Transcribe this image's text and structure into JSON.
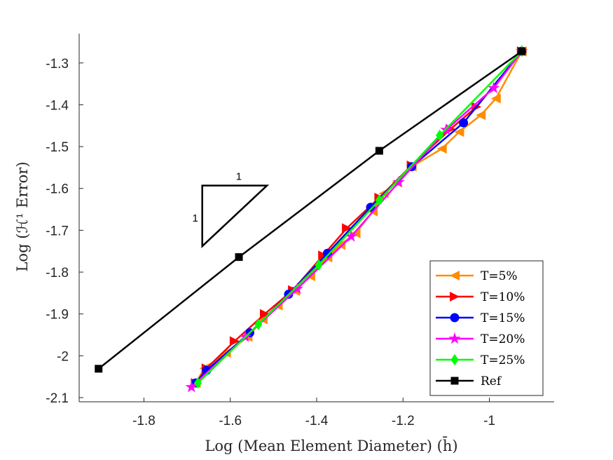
{
  "chart_data": {
    "type": "line",
    "title": "",
    "xlabel": "Log (Mean Element Diameter)  (h̄)",
    "ylabel": "Log (ℋ¹ Error)",
    "xlim": [
      -1.95,
      -0.85
    ],
    "ylim": [
      -2.11,
      -1.23
    ],
    "x_ticks": [
      -1.8,
      -1.6,
      -1.4,
      -1.2,
      -1
    ],
    "x_tick_labels": [
      "-1.8",
      "-1.6",
      "-1.4",
      "-1.2",
      "-1"
    ],
    "y_ticks": [
      -2.1,
      -2.0,
      -1.9,
      -1.8,
      -1.7,
      -1.6,
      -1.5,
      -1.4,
      -1.3
    ],
    "y_tick_labels": [
      "-2.1",
      "-2",
      "-1.9",
      "-1.8",
      "-1.7",
      "-1.6",
      "-1.5",
      "-1.4",
      "-1.3"
    ],
    "legend_position": "bottom-right",
    "series": [
      {
        "name": "T=5%",
        "color": "#FF8C00",
        "marker": "triangle-left",
        "points": [
          [
            -0.925,
            -1.272
          ],
          [
            -0.985,
            -1.385
          ],
          [
            -1.02,
            -1.425
          ],
          [
            -1.07,
            -1.465
          ],
          [
            -1.11,
            -1.505
          ],
          [
            -1.18,
            -1.548
          ],
          [
            -1.215,
            -1.585
          ],
          [
            -1.245,
            -1.612
          ],
          [
            -1.27,
            -1.655
          ],
          [
            -1.31,
            -1.707
          ],
          [
            -1.345,
            -1.735
          ],
          [
            -1.375,
            -1.765
          ],
          [
            -1.415,
            -1.81
          ],
          [
            -1.45,
            -1.845
          ],
          [
            -1.49,
            -1.88
          ],
          [
            -1.525,
            -1.913
          ],
          [
            -1.56,
            -1.955
          ],
          [
            -1.61,
            -1.993
          ],
          [
            -1.66,
            -2.03
          ],
          [
            -1.68,
            -2.065
          ]
        ]
      },
      {
        "name": "T=10%",
        "color": "#FF0000",
        "marker": "triangle-right",
        "points": [
          [
            -0.925,
            -1.272
          ],
          [
            -1.03,
            -1.405
          ],
          [
            -1.09,
            -1.458
          ],
          [
            -1.18,
            -1.545
          ],
          [
            -1.255,
            -1.622
          ],
          [
            -1.33,
            -1.695
          ],
          [
            -1.385,
            -1.76
          ],
          [
            -1.455,
            -1.843
          ],
          [
            -1.52,
            -1.9
          ],
          [
            -1.59,
            -1.965
          ],
          [
            -1.655,
            -2.03
          ],
          [
            -1.68,
            -2.065
          ]
        ]
      },
      {
        "name": "T=15%",
        "color": "#0000FF",
        "marker": "circle",
        "points": [
          [
            -0.925,
            -1.272
          ],
          [
            -1.06,
            -1.443
          ],
          [
            -1.18,
            -1.548
          ],
          [
            -1.275,
            -1.645
          ],
          [
            -1.375,
            -1.755
          ],
          [
            -1.465,
            -1.853
          ],
          [
            -1.555,
            -1.945
          ],
          [
            -1.655,
            -2.035
          ],
          [
            -1.68,
            -2.065
          ]
        ]
      },
      {
        "name": "T=20%",
        "color": "#FF00FF",
        "marker": "star",
        "points": [
          [
            -0.925,
            -1.272
          ],
          [
            -0.99,
            -1.36
          ],
          [
            -1.1,
            -1.46
          ],
          [
            -1.21,
            -1.585
          ],
          [
            -1.32,
            -1.715
          ],
          [
            -1.445,
            -1.84
          ],
          [
            -1.565,
            -1.955
          ],
          [
            -1.69,
            -2.075
          ]
        ]
      },
      {
        "name": "T=25%",
        "color": "#00FF00",
        "marker": "diamond",
        "points": [
          [
            -0.925,
            -1.272
          ],
          [
            -1.115,
            -1.473
          ],
          [
            -1.255,
            -1.628
          ],
          [
            -1.395,
            -1.783
          ],
          [
            -1.535,
            -1.925
          ],
          [
            -1.675,
            -2.065
          ]
        ]
      },
      {
        "name": "Ref",
        "color": "#000000",
        "marker": "square",
        "points": [
          [
            -1.905,
            -2.031
          ],
          [
            -1.58,
            -1.764
          ],
          [
            -1.255,
            -1.51
          ],
          [
            -0.925,
            -1.272
          ]
        ]
      }
    ],
    "slope_triangle": {
      "vertices": [
        [
          -1.665,
          -1.593
        ],
        [
          -1.515,
          -1.593
        ],
        [
          -1.665,
          -1.738
        ]
      ],
      "top_label": "1",
      "side_label": "1"
    }
  }
}
